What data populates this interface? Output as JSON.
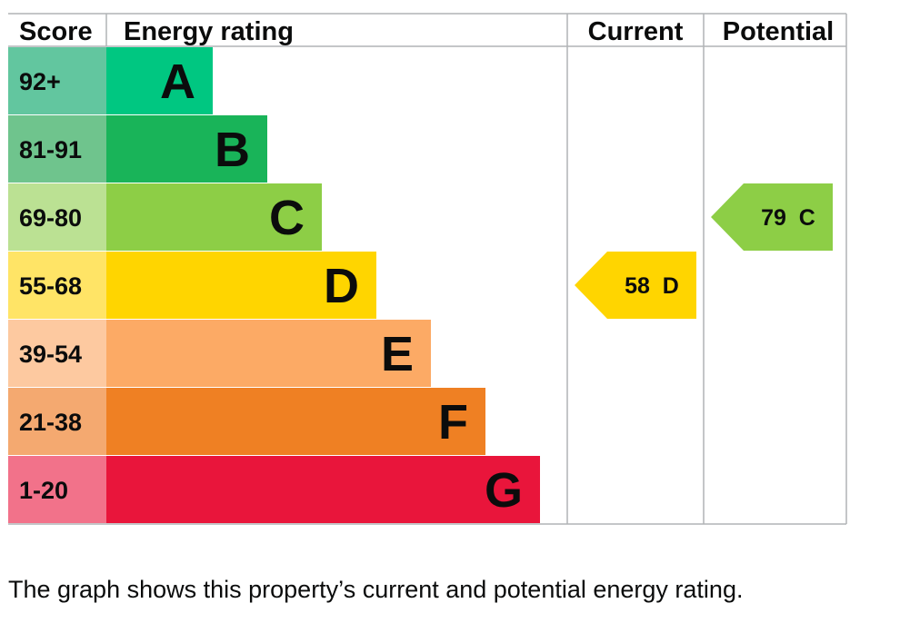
{
  "chart_data": {
    "type": "bar",
    "headers": {
      "score": "Score",
      "rating": "Energy rating",
      "current": "Current",
      "potential": "Potential"
    },
    "bands": [
      {
        "letter": "A",
        "score_range": "92+",
        "color": "#00c781",
        "score_bg": "#62c69f"
      },
      {
        "letter": "B",
        "score_range": "81-91",
        "color": "#19b459",
        "score_bg": "#6fc48d"
      },
      {
        "letter": "C",
        "score_range": "69-80",
        "color": "#8dce46",
        "score_bg": "#bbe193"
      },
      {
        "letter": "D",
        "score_range": "55-68",
        "color": "#ffd500",
        "score_bg": "#ffe466"
      },
      {
        "letter": "E",
        "score_range": "39-54",
        "color": "#fcaa65",
        "score_bg": "#fdc9a0"
      },
      {
        "letter": "F",
        "score_range": "21-38",
        "color": "#ef8023",
        "score_bg": "#f4a970"
      },
      {
        "letter": "G",
        "score_range": "1-20",
        "color": "#e9153b",
        "score_bg": "#f2728a"
      }
    ],
    "current": {
      "score": 58,
      "band": "D",
      "label": "58  D",
      "color": "#ffd500"
    },
    "potential": {
      "score": 79,
      "band": "C",
      "label": "79  C",
      "color": "#8dce46"
    }
  },
  "caption": "The graph shows this property’s current and potential energy rating."
}
